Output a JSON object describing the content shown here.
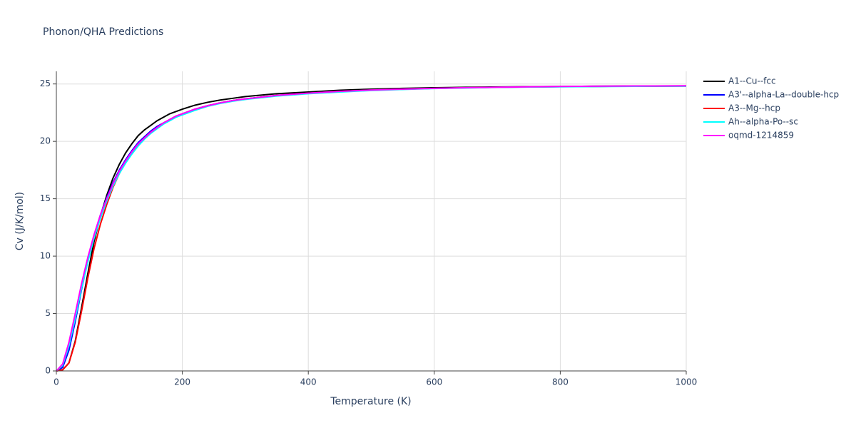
{
  "chart_data": {
    "type": "line",
    "title": "Phonon/QHA Predictions",
    "x_label": "Temperature (K)",
    "y_label": "Cv (J/K/mol)",
    "x": [
      0,
      10,
      20,
      30,
      40,
      50,
      60,
      70,
      80,
      90,
      100,
      110,
      120,
      130,
      140,
      150,
      160,
      170,
      180,
      190,
      200,
      220,
      240,
      260,
      280,
      300,
      350,
      400,
      450,
      500,
      550,
      600,
      650,
      700,
      750,
      800,
      850,
      900,
      950,
      1000
    ],
    "series": [
      {
        "name": "A1--Cu--fcc",
        "color": "#000000",
        "values": [
          0,
          0.1,
          0.7,
          2.6,
          5.5,
          8.5,
          11.3,
          13.5,
          15.3,
          16.8,
          18.0,
          19.0,
          19.8,
          20.5,
          21.0,
          21.4,
          21.8,
          22.1,
          22.4,
          22.6,
          22.8,
          23.15,
          23.4,
          23.6,
          23.75,
          23.9,
          24.15,
          24.3,
          24.45,
          24.55,
          24.62,
          24.67,
          24.71,
          24.74,
          24.76,
          24.78,
          24.8,
          24.81,
          24.82,
          24.83
        ]
      },
      {
        "name": "A3'--alpha-La--double-hcp",
        "color": "#0000ff",
        "values": [
          0,
          0.3,
          1.8,
          4.3,
          7.1,
          9.6,
          11.8,
          13.6,
          15.1,
          16.4,
          17.5,
          18.4,
          19.2,
          19.9,
          20.4,
          20.9,
          21.3,
          21.6,
          21.9,
          22.2,
          22.4,
          22.8,
          23.1,
          23.35,
          23.55,
          23.7,
          24.0,
          24.2,
          24.35,
          24.47,
          24.55,
          24.62,
          24.67,
          24.71,
          24.74,
          24.76,
          24.78,
          24.8,
          24.81,
          24.82
        ]
      },
      {
        "name": "A3--Mg--hcp",
        "color": "#ff0000",
        "values": [
          0,
          0.1,
          0.7,
          2.5,
          5.2,
          8.1,
          10.7,
          12.8,
          14.5,
          16.0,
          17.2,
          18.2,
          19.0,
          19.7,
          20.3,
          20.8,
          21.2,
          21.6,
          21.9,
          22.2,
          22.4,
          22.8,
          23.1,
          23.35,
          23.55,
          23.7,
          24.0,
          24.2,
          24.35,
          24.47,
          24.55,
          24.62,
          24.67,
          24.71,
          24.74,
          24.76,
          24.78,
          24.8,
          24.81,
          24.82
        ]
      },
      {
        "name": "Ah--alpha-Po--sc",
        "color": "#00ffff",
        "values": [
          0,
          0.5,
          2.2,
          4.6,
          7.2,
          9.5,
          11.6,
          13.3,
          14.8,
          16.1,
          17.2,
          18.1,
          18.9,
          19.6,
          20.2,
          20.7,
          21.1,
          21.5,
          21.8,
          22.1,
          22.3,
          22.7,
          23.05,
          23.3,
          23.5,
          23.65,
          23.95,
          24.15,
          24.3,
          24.43,
          24.52,
          24.6,
          24.65,
          24.7,
          24.73,
          24.75,
          24.77,
          24.79,
          24.8,
          24.81
        ]
      },
      {
        "name": "oqmd-1214859",
        "color": "#ff00ff",
        "values": [
          0,
          0.6,
          2.5,
          5.0,
          7.6,
          9.9,
          11.9,
          13.6,
          15.0,
          16.3,
          17.4,
          18.3,
          19.1,
          19.8,
          20.3,
          20.8,
          21.2,
          21.6,
          21.9,
          22.2,
          22.4,
          22.8,
          23.1,
          23.35,
          23.55,
          23.7,
          24.0,
          24.2,
          24.35,
          24.47,
          24.55,
          24.62,
          24.67,
          24.71,
          24.75,
          24.78,
          24.8,
          24.82,
          24.83,
          24.84
        ]
      }
    ],
    "xlim": [
      0,
      1000
    ],
    "xticks": [
      0,
      200,
      400,
      600,
      800,
      1000
    ],
    "ylim": [
      0,
      26.1
    ],
    "yticks": [
      0,
      5,
      10,
      15,
      20,
      25
    ],
    "grid": true
  }
}
